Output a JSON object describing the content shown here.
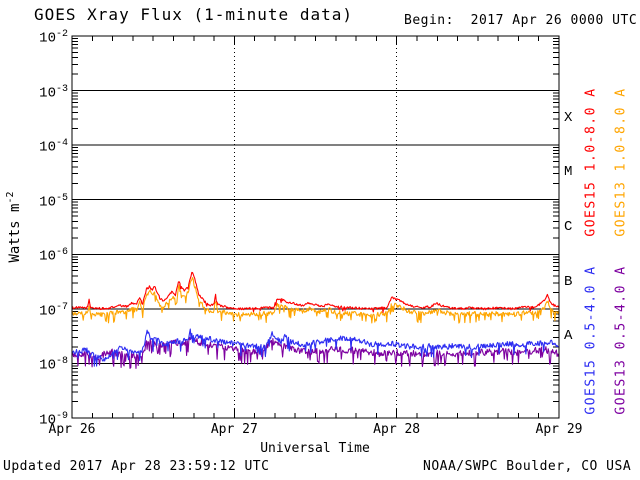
{
  "header": {
    "begin_label": "Begin:  2017 Apr 26 0000 UTC"
  },
  "footer": {
    "updated": "Updated 2017 Apr 28 23:59:12 UTC",
    "credit": "NOAA/SWPC Boulder, CO USA"
  },
  "chart_data": {
    "type": "line",
    "title": "GOES Xray Flux (1-minute data)",
    "xlabel": "Universal Time",
    "ylabel": "Watts m-2",
    "x_axis": {
      "tick_labels": [
        "Apr 26",
        "Apr 27",
        "Apr 28",
        "Apr 29"
      ],
      "tick_hours": [
        0,
        24,
        48,
        72
      ],
      "range_hours": [
        0,
        72
      ],
      "minor_tick_interval_hours": 3,
      "day_gridlines_dotted_hours": [
        24,
        48
      ]
    },
    "y_axis": {
      "scale": "log",
      "ylim": [
        1e-09,
        0.01
      ],
      "tick_exponents": [
        -2,
        -3,
        -4,
        -5,
        -6,
        -7,
        -8,
        -9
      ]
    },
    "flare_classes": [
      {
        "label": "X",
        "band_exponents": [
          -4,
          -3
        ]
      },
      {
        "label": "M",
        "band_exponents": [
          -5,
          -4
        ]
      },
      {
        "label": "C",
        "band_exponents": [
          -6,
          -5
        ]
      },
      {
        "label": "B",
        "band_exponents": [
          -7,
          -6
        ]
      },
      {
        "label": "A",
        "band_exponents": [
          -8,
          -7
        ]
      }
    ],
    "legend": [
      {
        "label": "GOES15 1.0-8.0 A",
        "color": "#ff0000"
      },
      {
        "label": "GOES13 1.0-8.0 A",
        "color": "#ffa500"
      },
      {
        "label": "GOES15 0.5-4.0 A",
        "color": "#2d2df2"
      },
      {
        "label": "GOES13 0.5-4.0 A",
        "color": "#7d00a0"
      }
    ],
    "series": [
      {
        "name": "GOES15 1.0-8.0 A",
        "color": "#ff0000",
        "points": [
          [
            0,
            1.05e-07
          ],
          [
            2.3,
            1.05e-07
          ],
          [
            2.5,
            1.55e-07
          ],
          [
            2.7,
            1.05e-07
          ],
          [
            5,
            1e-07
          ],
          [
            7,
            1.15e-07
          ],
          [
            8,
            1.1e-07
          ],
          [
            9,
            1.3e-07
          ],
          [
            9.5,
            1.2e-07
          ],
          [
            10,
            1.65e-07
          ],
          [
            10.4,
            1.2e-07
          ],
          [
            11,
            2.3e-07
          ],
          [
            11.5,
            2.6e-07
          ],
          [
            11.8,
            2.2e-07
          ],
          [
            12.2,
            2.65e-07
          ],
          [
            12.5,
            2.1e-07
          ],
          [
            13,
            1.55e-07
          ],
          [
            13.6,
            1.35e-07
          ],
          [
            14.3,
            1.8e-07
          ],
          [
            14.8,
            2.05e-07
          ],
          [
            15.3,
            1.8e-07
          ],
          [
            15.8,
            3.4e-07
          ],
          [
            16.1,
            2.6e-07
          ],
          [
            16.6,
            2.2e-07
          ],
          [
            17.1,
            2.5e-07
          ],
          [
            17.8,
            4.9e-07
          ],
          [
            18.2,
            3.3e-07
          ],
          [
            18.7,
            1.9e-07
          ],
          [
            19.5,
            1.4e-07
          ],
          [
            20.3,
            1.15e-07
          ],
          [
            21,
            1.2e-07
          ],
          [
            21.2,
            1.9e-07
          ],
          [
            21.5,
            1.2e-07
          ],
          [
            23,
            1.05e-07
          ],
          [
            25,
            1e-07
          ],
          [
            28,
            1.05e-07
          ],
          [
            29.8,
            1.05e-07
          ],
          [
            30.3,
            1.55e-07
          ],
          [
            31,
            1.5e-07
          ],
          [
            32,
            1.3e-07
          ],
          [
            33,
            1.25e-07
          ],
          [
            34,
            1.15e-07
          ],
          [
            35,
            1.3e-07
          ],
          [
            35.8,
            1.2e-07
          ],
          [
            37,
            1.1e-07
          ],
          [
            38,
            1.25e-07
          ],
          [
            39,
            1.1e-07
          ],
          [
            41,
            1.05e-07
          ],
          [
            44,
            1e-07
          ],
          [
            46.5,
            1.05e-07
          ],
          [
            47.3,
            1.6e-07
          ],
          [
            48,
            1.5e-07
          ],
          [
            49,
            1.3e-07
          ],
          [
            50,
            1.15e-07
          ],
          [
            51.5,
            1.05e-07
          ],
          [
            53,
            1.1e-07
          ],
          [
            54,
            1.25e-07
          ],
          [
            55,
            1.1e-07
          ],
          [
            57,
            1e-07
          ],
          [
            59,
            1.05e-07
          ],
          [
            61,
            1e-07
          ],
          [
            63,
            1.05e-07
          ],
          [
            65,
            1e-07
          ],
          [
            67,
            1.1e-07
          ],
          [
            68.5,
            1.05e-07
          ],
          [
            69.5,
            1.3e-07
          ],
          [
            70,
            1.45e-07
          ],
          [
            70.3,
            1.9e-07
          ],
          [
            70.6,
            1.35e-07
          ],
          [
            71.3,
            1.15e-07
          ],
          [
            72,
            1.1e-07
          ]
        ]
      },
      {
        "name": "GOES13 1.0-8.0 A",
        "color": "#ffa500",
        "points": [
          [
            0,
            8.2e-08
          ],
          [
            2.3,
            8.2e-08
          ],
          [
            2.5,
            1.1e-07
          ],
          [
            2.7,
            8.2e-08
          ],
          [
            5,
            7.8e-08
          ],
          [
            7,
            9e-08
          ],
          [
            8,
            8.6e-08
          ],
          [
            9,
            1e-07
          ],
          [
            9.5,
            9.3e-08
          ],
          [
            10,
            1.3e-07
          ],
          [
            10.4,
            9.4e-08
          ],
          [
            11,
            1.8e-07
          ],
          [
            11.5,
            2.1e-07
          ],
          [
            11.8,
            1.75e-07
          ],
          [
            12.2,
            2.1e-07
          ],
          [
            12.5,
            1.65e-07
          ],
          [
            13,
            1.2e-07
          ],
          [
            13.6,
            1.05e-07
          ],
          [
            14.3,
            1.4e-07
          ],
          [
            14.8,
            1.6e-07
          ],
          [
            15.3,
            1.45e-07
          ],
          [
            15.8,
            2.6e-07
          ],
          [
            16.1,
            2e-07
          ],
          [
            16.6,
            1.7e-07
          ],
          [
            17.1,
            2e-07
          ],
          [
            17.8,
            3.7e-07
          ],
          [
            18.2,
            2.5e-07
          ],
          [
            18.7,
            1.5e-07
          ],
          [
            19.5,
            1.1e-07
          ],
          [
            20.3,
            9e-08
          ],
          [
            21,
            9.3e-08
          ],
          [
            21.2,
            1.45e-07
          ],
          [
            21.5,
            9.3e-08
          ],
          [
            23,
            8.2e-08
          ],
          [
            25,
            7.8e-08
          ],
          [
            28,
            8.2e-08
          ],
          [
            29.8,
            8.2e-08
          ],
          [
            30.3,
            1.2e-07
          ],
          [
            31,
            1.15e-07
          ],
          [
            32,
            1e-07
          ],
          [
            33,
            9.7e-08
          ],
          [
            34,
            9e-08
          ],
          [
            35,
            1e-07
          ],
          [
            35.8,
            9.3e-08
          ],
          [
            37,
            8.6e-08
          ],
          [
            38,
            9.7e-08
          ],
          [
            39,
            8.6e-08
          ],
          [
            41,
            8.2e-08
          ],
          [
            44,
            7.8e-08
          ],
          [
            46.5,
            8.2e-08
          ],
          [
            47.3,
            1.25e-07
          ],
          [
            48,
            1.15e-07
          ],
          [
            49,
            1e-07
          ],
          [
            50,
            9e-08
          ],
          [
            51.5,
            8.2e-08
          ],
          [
            53,
            8.6e-08
          ],
          [
            54,
            9.7e-08
          ],
          [
            55,
            8.6e-08
          ],
          [
            57,
            7.8e-08
          ],
          [
            59,
            8.2e-08
          ],
          [
            61,
            7.8e-08
          ],
          [
            63,
            8.2e-08
          ],
          [
            65,
            7.8e-08
          ],
          [
            67,
            8.6e-08
          ],
          [
            68.5,
            8.2e-08
          ],
          [
            69.5,
            1e-07
          ],
          [
            70,
            1.1e-07
          ],
          [
            70.3,
            1.45e-07
          ],
          [
            70.6,
            1.05e-07
          ],
          [
            71.3,
            9e-08
          ],
          [
            72,
            8.6e-08
          ]
        ]
      },
      {
        "name": "GOES15 0.5-4.0 A",
        "color": "#2d2df2",
        "points": [
          [
            0,
            1.7e-08
          ],
          [
            1,
            1.6e-08
          ],
          [
            2,
            1.8e-08
          ],
          [
            3,
            1.5e-08
          ],
          [
            4,
            1.3e-08
          ],
          [
            4.7,
            1.15e-08
          ],
          [
            5.5,
            1.4e-08
          ],
          [
            6.5,
            1.7e-08
          ],
          [
            7.2,
            2e-08
          ],
          [
            7.8,
            1.8e-08
          ],
          [
            8.5,
            1.6e-08
          ],
          [
            9.5,
            1.7e-08
          ],
          [
            10.5,
            1.8e-08
          ],
          [
            11.1,
            3.7e-08
          ],
          [
            11.5,
            3.3e-08
          ],
          [
            12,
            2.6e-08
          ],
          [
            12.5,
            2.8e-08
          ],
          [
            13,
            2.4e-08
          ],
          [
            13.5,
            2.3e-08
          ],
          [
            14.5,
            2.5e-08
          ],
          [
            15.5,
            2.6e-08
          ],
          [
            16,
            2.4e-08
          ],
          [
            16.5,
            2.6e-08
          ],
          [
            17,
            2.5e-08
          ],
          [
            17.6,
            4.4e-08
          ],
          [
            17.9,
            3e-08
          ],
          [
            18.5,
            3.1e-08
          ],
          [
            19.5,
            2.9e-08
          ],
          [
            21,
            2.7e-08
          ],
          [
            22.5,
            2.5e-08
          ],
          [
            24,
            2.3e-08
          ],
          [
            25.5,
            2.2e-08
          ],
          [
            27,
            2.1e-08
          ],
          [
            28.5,
            2e-08
          ],
          [
            29.6,
            3.6e-08
          ],
          [
            30.2,
            3e-08
          ],
          [
            31,
            2.5e-08
          ],
          [
            31.5,
            3.2e-08
          ],
          [
            32.2,
            2.6e-08
          ],
          [
            33,
            2.3e-08
          ],
          [
            34.5,
            2.2e-08
          ],
          [
            36,
            2.4e-08
          ],
          [
            37.5,
            2.6e-08
          ],
          [
            39,
            2.8e-08
          ],
          [
            40,
            2.9e-08
          ],
          [
            41,
            2.8e-08
          ],
          [
            42.5,
            2.6e-08
          ],
          [
            44,
            2.3e-08
          ],
          [
            45.5,
            2.2e-08
          ],
          [
            47.5,
            2.3e-08
          ],
          [
            49,
            2.1e-08
          ],
          [
            51,
            2e-08
          ],
          [
            53,
            2.1e-08
          ],
          [
            55,
            2e-08
          ],
          [
            57,
            2.1e-08
          ],
          [
            59,
            2e-08
          ],
          [
            61,
            2.1e-08
          ],
          [
            63,
            2.2e-08
          ],
          [
            65,
            2.3e-08
          ],
          [
            66.5,
            2.2e-08
          ],
          [
            68,
            2.4e-08
          ],
          [
            69.5,
            2.3e-08
          ],
          [
            70.5,
            2.5e-08
          ],
          [
            71.5,
            2.2e-08
          ],
          [
            72,
            2.1e-08
          ]
        ]
      },
      {
        "name": "GOES13 0.5-4.0 A",
        "color": "#7d00a0",
        "points": [
          [
            0,
            1.4e-08
          ],
          [
            2,
            1.5e-08
          ],
          [
            3.5,
            1.3e-08
          ],
          [
            5,
            1.5e-08
          ],
          [
            6,
            1.6e-08
          ],
          [
            7,
            1.5e-08
          ],
          [
            9,
            1.4e-08
          ],
          [
            10.5,
            1.5e-08
          ],
          [
            11.1,
            2.6e-08
          ],
          [
            12,
            2.3e-08
          ],
          [
            13,
            2.1e-08
          ],
          [
            14,
            2.2e-08
          ],
          [
            15,
            2.4e-08
          ],
          [
            16,
            2.3e-08
          ],
          [
            17,
            2.4e-08
          ],
          [
            17.6,
            3.2e-08
          ],
          [
            18.5,
            2.5e-08
          ],
          [
            20,
            2.2e-08
          ],
          [
            22,
            2e-08
          ],
          [
            24,
            1.8e-08
          ],
          [
            26,
            1.7e-08
          ],
          [
            28,
            1.6e-08
          ],
          [
            29.6,
            2.6e-08
          ],
          [
            30.5,
            2.2e-08
          ],
          [
            32,
            1.9e-08
          ],
          [
            34,
            1.7e-08
          ],
          [
            36,
            1.7e-08
          ],
          [
            38,
            1.8e-08
          ],
          [
            40,
            1.8e-08
          ],
          [
            42,
            1.7e-08
          ],
          [
            44,
            1.6e-08
          ],
          [
            46,
            1.5e-08
          ],
          [
            48,
            1.6e-08
          ],
          [
            50,
            1.5e-08
          ],
          [
            52,
            1.5e-08
          ],
          [
            54,
            1.6e-08
          ],
          [
            56,
            1.5e-08
          ],
          [
            58,
            1.5e-08
          ],
          [
            60,
            1.6e-08
          ],
          [
            62,
            1.6e-08
          ],
          [
            64,
            1.7e-08
          ],
          [
            66,
            1.6e-08
          ],
          [
            68,
            1.7e-08
          ],
          [
            70,
            1.8e-08
          ],
          [
            71,
            1.6e-08
          ],
          [
            72,
            1.5e-08
          ]
        ]
      }
    ]
  }
}
